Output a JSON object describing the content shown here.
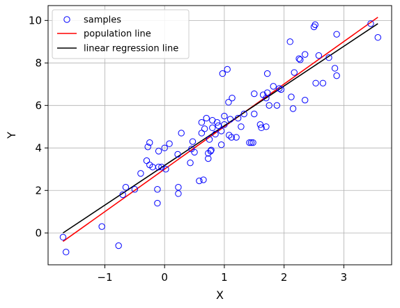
{
  "chart_data": {
    "type": "scatter",
    "xlabel": "X",
    "ylabel": "Y",
    "xlim": [
      -1.95,
      3.8
    ],
    "ylim": [
      -1.5,
      10.7
    ],
    "x_ticks": [
      -1,
      0,
      1,
      2,
      3
    ],
    "x_tick_labels": [
      "−1",
      "0",
      "1",
      "2",
      "3"
    ],
    "y_ticks": [
      0,
      2,
      4,
      6,
      8,
      10
    ],
    "y_tick_labels": [
      "0",
      "2",
      "4",
      "6",
      "8",
      "10"
    ],
    "grid": true,
    "legend_position": "top-left",
    "legend": [
      "samples",
      "population line",
      "linear regression line"
    ],
    "colors": {
      "samples": "#0000ff",
      "population_line": "#ff0000",
      "regression_line": "#000000"
    },
    "series": [
      {
        "name": "samples",
        "kind": "scatter",
        "points": [
          [
            -1.7,
            -0.2
          ],
          [
            -1.65,
            -0.9
          ],
          [
            -1.05,
            0.3
          ],
          [
            -0.77,
            -0.6
          ],
          [
            -0.7,
            1.8
          ],
          [
            -0.65,
            2.15
          ],
          [
            -0.5,
            2.05
          ],
          [
            -0.4,
            2.8
          ],
          [
            -0.3,
            3.4
          ],
          [
            -0.28,
            4.05
          ],
          [
            -0.25,
            4.25
          ],
          [
            -0.25,
            3.2
          ],
          [
            -0.2,
            3.1
          ],
          [
            -0.12,
            1.4
          ],
          [
            -0.12,
            2.05
          ],
          [
            -0.1,
            3.1
          ],
          [
            -0.1,
            3.85
          ],
          [
            -0.05,
            3.1
          ],
          [
            0.0,
            4.0
          ],
          [
            0.02,
            3.0
          ],
          [
            0.08,
            4.2
          ],
          [
            0.22,
            3.7
          ],
          [
            0.23,
            2.15
          ],
          [
            0.23,
            1.85
          ],
          [
            0.28,
            4.7
          ],
          [
            0.43,
            3.3
          ],
          [
            0.45,
            3.95
          ],
          [
            0.47,
            4.3
          ],
          [
            0.5,
            3.8
          ],
          [
            0.58,
            2.45
          ],
          [
            0.62,
            4.7
          ],
          [
            0.62,
            5.2
          ],
          [
            0.65,
            2.5
          ],
          [
            0.67,
            4.9
          ],
          [
            0.7,
            5.4
          ],
          [
            0.73,
            3.5
          ],
          [
            0.73,
            3.75
          ],
          [
            0.75,
            4.4
          ],
          [
            0.77,
            3.85
          ],
          [
            0.78,
            3.9
          ],
          [
            0.8,
            4.95
          ],
          [
            0.8,
            5.3
          ],
          [
            0.85,
            4.65
          ],
          [
            0.88,
            5.2
          ],
          [
            0.9,
            5.05
          ],
          [
            0.95,
            4.8
          ],
          [
            0.95,
            4.15
          ],
          [
            0.97,
            7.5
          ],
          [
            1.0,
            5.1
          ],
          [
            1.0,
            5.5
          ],
          [
            1.05,
            7.7
          ],
          [
            1.07,
            6.15
          ],
          [
            1.08,
            4.6
          ],
          [
            1.1,
            5.35
          ],
          [
            1.12,
            4.5
          ],
          [
            1.13,
            6.35
          ],
          [
            1.2,
            4.5
          ],
          [
            1.23,
            5.4
          ],
          [
            1.28,
            5.0
          ],
          [
            1.33,
            5.6
          ],
          [
            1.42,
            4.25
          ],
          [
            1.45,
            4.25
          ],
          [
            1.48,
            4.25
          ],
          [
            1.5,
            5.6
          ],
          [
            1.5,
            6.55
          ],
          [
            1.6,
            5.1
          ],
          [
            1.62,
            4.95
          ],
          [
            1.65,
            6.5
          ],
          [
            1.7,
            5.0
          ],
          [
            1.7,
            6.35
          ],
          [
            1.72,
            7.5
          ],
          [
            1.72,
            6.6
          ],
          [
            1.75,
            6.0
          ],
          [
            1.82,
            6.9
          ],
          [
            1.88,
            6.0
          ],
          [
            1.92,
            6.8
          ],
          [
            1.95,
            6.75
          ],
          [
            2.1,
            9.0
          ],
          [
            2.12,
            6.4
          ],
          [
            2.15,
            5.85
          ],
          [
            2.17,
            7.55
          ],
          [
            2.25,
            8.2
          ],
          [
            2.27,
            8.15
          ],
          [
            2.35,
            8.4
          ],
          [
            2.35,
            6.25
          ],
          [
            2.5,
            9.7
          ],
          [
            2.52,
            9.8
          ],
          [
            2.53,
            7.05
          ],
          [
            2.58,
            8.35
          ],
          [
            2.65,
            7.05
          ],
          [
            2.75,
            8.25
          ],
          [
            2.85,
            7.75
          ],
          [
            2.88,
            9.35
          ],
          [
            2.88,
            7.4
          ],
          [
            3.45,
            9.85
          ],
          [
            3.57,
            9.2
          ]
        ]
      },
      {
        "name": "population line",
        "kind": "line",
        "points": [
          [
            -1.7,
            -0.4
          ],
          [
            3.57,
            10.15
          ]
        ]
      },
      {
        "name": "linear regression line",
        "kind": "line",
        "points": [
          [
            -1.7,
            0.0
          ],
          [
            3.57,
            9.85
          ]
        ]
      }
    ]
  }
}
